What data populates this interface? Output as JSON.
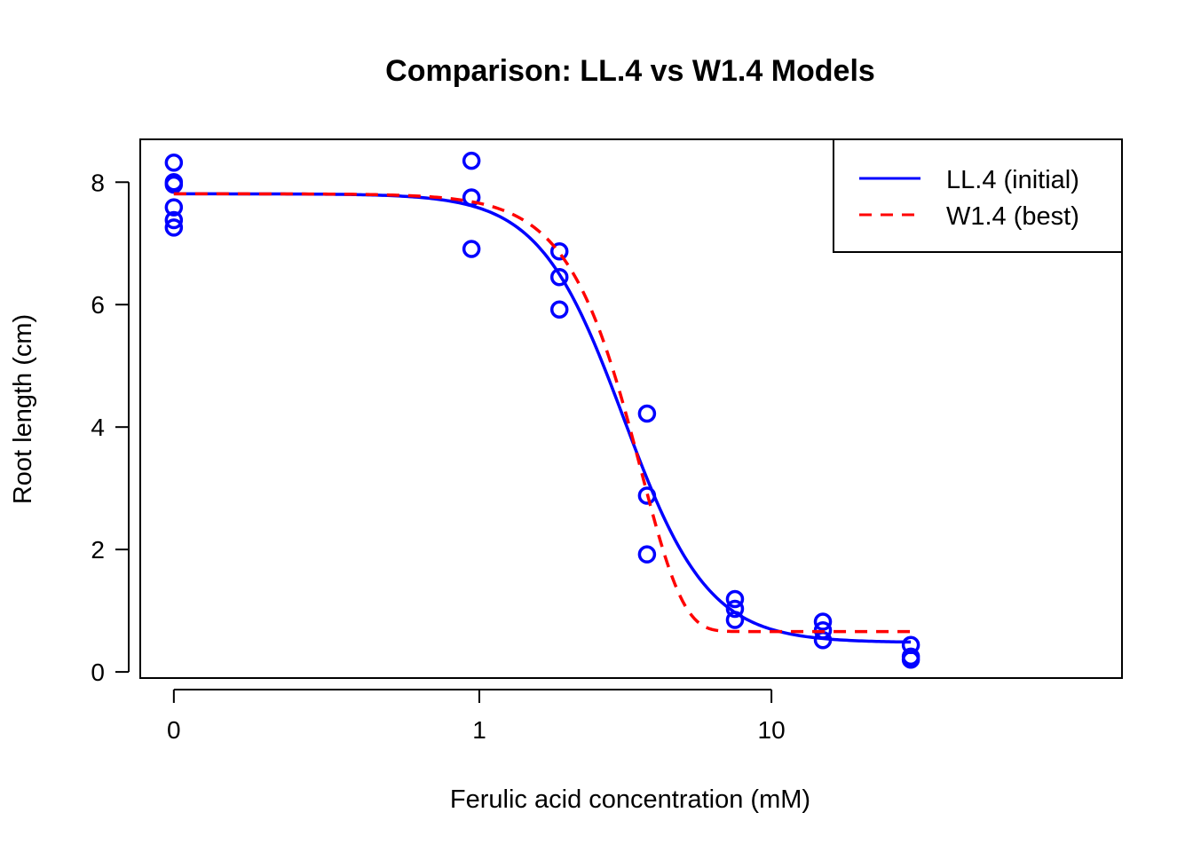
{
  "chart_data": {
    "type": "scatter",
    "title": "Comparison: LL.4 vs W1.4 Models",
    "xlabel": "Ferulic acid concentration (mM)",
    "ylabel": "Root length (cm)",
    "x_scale": "log",
    "x_ticks": [
      {
        "value": 0,
        "label": "0"
      },
      {
        "value": 1,
        "label": "1"
      },
      {
        "value": 10,
        "label": "10"
      }
    ],
    "y_ticks": [
      {
        "value": 0,
        "label": "0"
      },
      {
        "value": 2,
        "label": "2"
      },
      {
        "value": 4,
        "label": "4"
      },
      {
        "value": 6,
        "label": "6"
      },
      {
        "value": 8,
        "label": "8"
      }
    ],
    "ylim": [
      -0.1,
      8.7
    ],
    "points_color": "#0000ff",
    "points": [
      {
        "x": 0,
        "y": 8.32
      },
      {
        "x": 0,
        "y": 8.0
      },
      {
        "x": 0,
        "y": 7.96
      },
      {
        "x": 0,
        "y": 7.59
      },
      {
        "x": 0,
        "y": 7.38
      },
      {
        "x": 0,
        "y": 7.26
      },
      {
        "x": 0.94,
        "y": 8.35
      },
      {
        "x": 0.94,
        "y": 7.75
      },
      {
        "x": 0.94,
        "y": 6.91
      },
      {
        "x": 1.88,
        "y": 6.87
      },
      {
        "x": 1.88,
        "y": 6.45
      },
      {
        "x": 1.88,
        "y": 5.92
      },
      {
        "x": 3.75,
        "y": 4.22
      },
      {
        "x": 3.75,
        "y": 2.88
      },
      {
        "x": 3.75,
        "y": 1.92
      },
      {
        "x": 7.5,
        "y": 1.19
      },
      {
        "x": 7.5,
        "y": 1.03
      },
      {
        "x": 7.5,
        "y": 0.85
      },
      {
        "x": 15,
        "y": 0.82
      },
      {
        "x": 15,
        "y": 0.68
      },
      {
        "x": 15,
        "y": 0.52
      },
      {
        "x": 30,
        "y": 0.44
      },
      {
        "x": 30,
        "y": 0.25
      },
      {
        "x": 30,
        "y": 0.2
      }
    ],
    "series": [
      {
        "name": "LL.4 (initial)",
        "color": "#0000ff",
        "dash": "solid",
        "model": "LL.4",
        "params": {
          "b": 3.0,
          "c": 0.48,
          "d": 7.81,
          "e": 3.12
        }
      },
      {
        "name": "W1.4 (best)",
        "color": "#ff0000",
        "dash": "dashed",
        "model": "W1.4",
        "params": {
          "b": 3.0,
          "c": 0.66,
          "d": 7.81,
          "e": 3.58
        }
      }
    ],
    "legend_position": "top-right"
  }
}
